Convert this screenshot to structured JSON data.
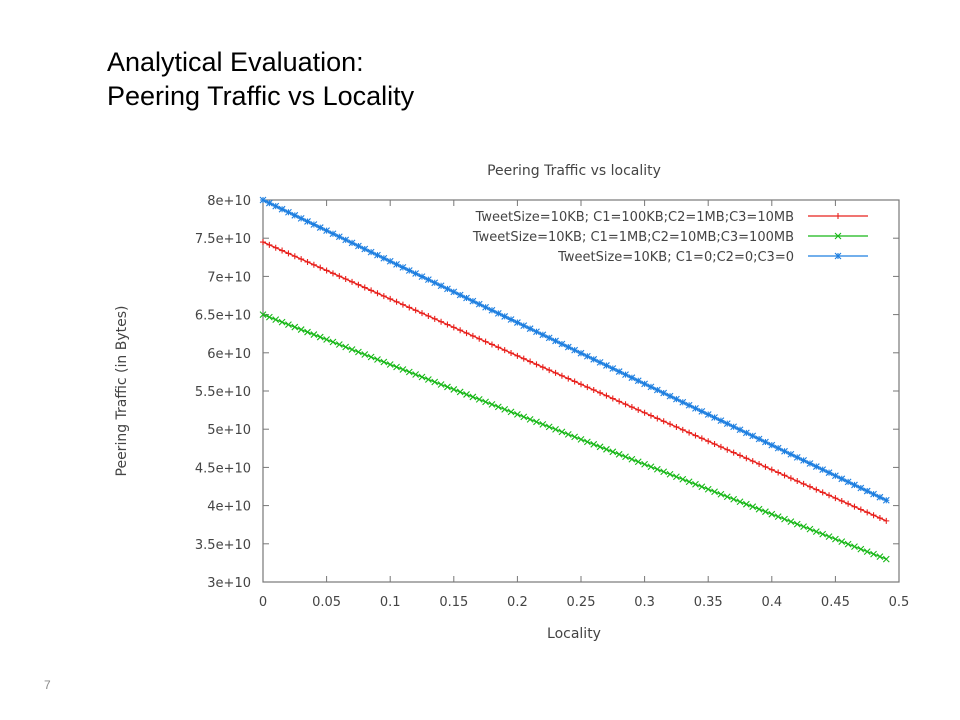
{
  "slide": {
    "title_line1": "Analytical Evaluation:",
    "title_line2": "Peering Traffic vs Locality",
    "page_number": "7"
  },
  "chart_data": {
    "type": "line",
    "title": "Peering Traffic vs locality",
    "xlabel": "Locality",
    "ylabel": "Peering Traffic (in Bytes)",
    "xlim": [
      0,
      0.5
    ],
    "ylim": [
      30000000000,
      80000000000
    ],
    "x_ticks": [
      0,
      0.05,
      0.1,
      0.15,
      0.2,
      0.25,
      0.3,
      0.35,
      0.4,
      0.45,
      0.5
    ],
    "x_tick_labels": [
      "0",
      "0.05",
      "0.1",
      "0.15",
      "0.2",
      "0.25",
      "0.3",
      "0.35",
      "0.4",
      "0.45",
      "0.5"
    ],
    "y_ticks": [
      30000000000,
      35000000000,
      40000000000,
      45000000000,
      50000000000,
      55000000000,
      60000000000,
      65000000000,
      70000000000,
      75000000000,
      80000000000
    ],
    "y_tick_labels": [
      "3e+10",
      "3.5e+10",
      "4e+10",
      "4.5e+10",
      "5e+10",
      "5.5e+10",
      "6e+10",
      "6.5e+10",
      "7e+10",
      "7.5e+10",
      "8e+10"
    ],
    "grid": false,
    "legend_position": "top-right",
    "sampling_note_hidden": true,
    "series": [
      {
        "name": "TweetSize=10KB; C1=100KB;C2=1MB;C3=10MB",
        "color": "#e8201c",
        "marker": "plus",
        "x_range": [
          0,
          0.49
        ],
        "y_at_start": 74500000000,
        "y_at_end": 38000000000
      },
      {
        "name": "TweetSize=10KB; C1=1MB;C2=10MB;C3=100MB",
        "color": "#18b818",
        "marker": "cross",
        "x_range": [
          0,
          0.49
        ],
        "y_at_start": 65000000000,
        "y_at_end": 33000000000
      },
      {
        "name": "TweetSize=10KB; C1=0;C2=0;C3=0",
        "color": "#1e7fe0",
        "marker": "star",
        "x_range": [
          0,
          0.49
        ],
        "y_at_start": 80000000000,
        "y_at_end": 40700000000
      }
    ]
  }
}
